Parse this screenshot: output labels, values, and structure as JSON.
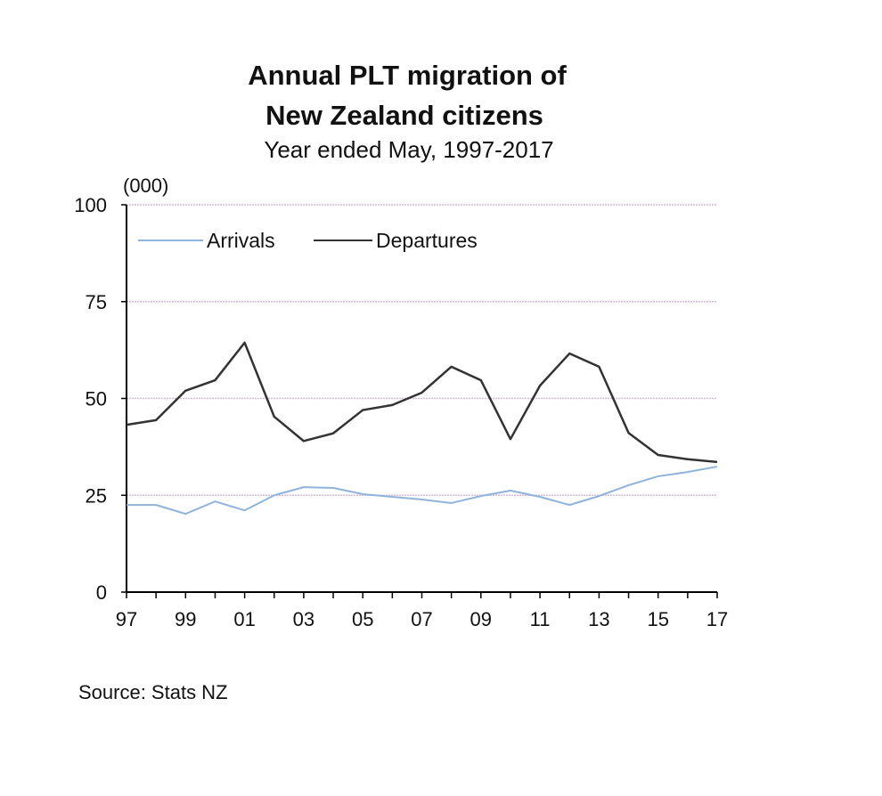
{
  "chart_data": {
    "type": "line",
    "title": [
      "Annual PLT migration of",
      "New Zealand citizens"
    ],
    "subtitle": "Year ended May, 1997-2017",
    "ylabel": "(000)",
    "xlabel": "",
    "source": "Source: Stats NZ",
    "ylim": [
      0,
      100
    ],
    "yticks": [
      0,
      25,
      50,
      75,
      100
    ],
    "x": [
      1997,
      1998,
      1999,
      2000,
      2001,
      2002,
      2003,
      2004,
      2005,
      2006,
      2007,
      2008,
      2009,
      2010,
      2011,
      2012,
      2013,
      2014,
      2015,
      2016,
      2017
    ],
    "xtick_labels": [
      "97",
      "99",
      "01",
      "03",
      "05",
      "07",
      "09",
      "11",
      "13",
      "15",
      "17"
    ],
    "grid": true,
    "legend_position": "top-left",
    "series": [
      {
        "name": "Arrivals",
        "color": "#8fb3dc",
        "values": [
          22.5,
          22.5,
          20.2,
          23.4,
          21.1,
          25.0,
          27.1,
          26.9,
          25.3,
          24.6,
          23.9,
          23.0,
          24.8,
          26.2,
          24.6,
          22.5,
          24.8,
          27.6,
          29.9,
          31.0,
          32.4
        ]
      },
      {
        "name": "Departures",
        "color": "#333333",
        "values": [
          43.2,
          44.4,
          52.0,
          54.7,
          64.4,
          45.3,
          39.0,
          41.0,
          47.0,
          48.3,
          51.5,
          58.2,
          54.7,
          39.5,
          53.3,
          61.6,
          58.2,
          41.1,
          35.4,
          34.3,
          33.6
        ]
      }
    ]
  }
}
